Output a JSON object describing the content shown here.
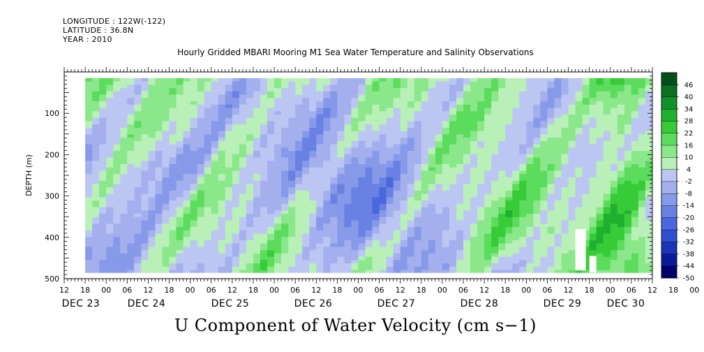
{
  "header": {
    "longitude": "LONGITUDE : 122W(-122)",
    "latitude": "LATITUDE : 36.8N",
    "year": "YEAR : 2010"
  },
  "chart_data": {
    "type": "heatmap",
    "title": "Hourly Gridded MBARI Mooring M1 Sea Water Temperature and Salinity Observations",
    "xlabel": "U Component of Water Velocity (cm s−1)",
    "ylabel": "DEPTH (m)",
    "ylim": [
      500,
      0
    ],
    "y_ticks": [
      100,
      200,
      300,
      400,
      500
    ],
    "y_tick_labels": [
      "100",
      "200",
      "300",
      "400",
      "500"
    ],
    "hour_tick_labels": [
      "12",
      "18",
      "00",
      "06",
      "12",
      "18",
      "00",
      "06",
      "12",
      "18",
      "00",
      "06",
      "12",
      "18",
      "00",
      "06",
      "12",
      "18",
      "00",
      "06",
      "12",
      "18",
      "00",
      "06",
      "12",
      "18",
      "00",
      "06",
      "12",
      "18",
      "00",
      "06",
      "12"
    ],
    "date_labels": [
      "DEC 23",
      "DEC 24",
      "DEC 25",
      "DEC 26",
      "DEC 27",
      "DEC 28",
      "DEC 29",
      "DEC 30"
    ],
    "x_start": "2010-12-23 12:00",
    "x_end": "2010-12-30 12:00",
    "data_start": "2010-12-23 18:00",
    "data_depth_range": [
      15,
      485
    ],
    "colorbar": {
      "levels": [
        -50,
        -44,
        -38,
        -32,
        -26,
        -20,
        -14,
        -8,
        -2,
        4,
        10,
        16,
        22,
        28,
        34,
        40,
        46
      ],
      "tick_labels": [
        "-50",
        "-44",
        "-38",
        "-32",
        "-26",
        "-20",
        "-14",
        "-8",
        "-2",
        "4",
        "10",
        "16",
        "22",
        "28",
        "34",
        "40",
        "46"
      ],
      "colors": [
        "#00006e",
        "#0a1a96",
        "#1a35b8",
        "#2f4fd2",
        "#4a67dd",
        "#6881e3",
        "#8799e9",
        "#a4b0ee",
        "#bcc6f3",
        "#b8f0b8",
        "#8ae88a",
        "#5cdc5c",
        "#37cc37",
        "#20b030",
        "#12902a",
        "#0a7022",
        "#04501a"
      ]
    },
    "grid": false,
    "legend": "right colorbar"
  }
}
